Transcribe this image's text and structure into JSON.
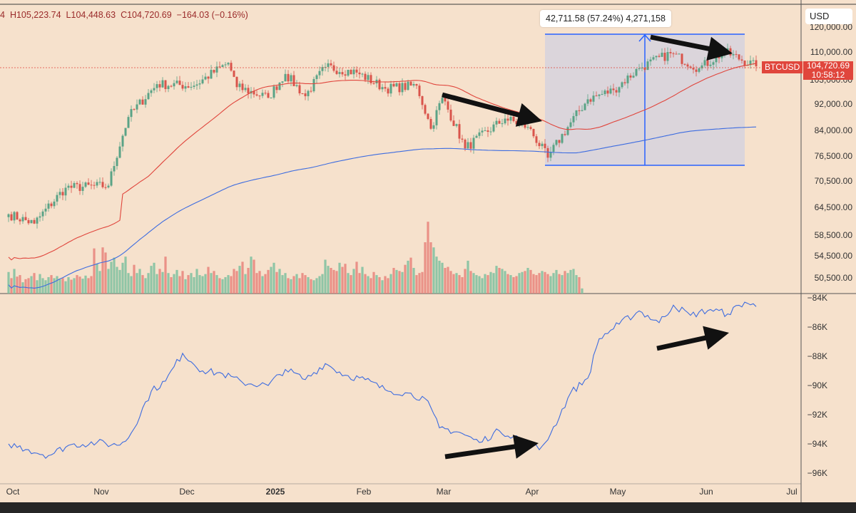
{
  "ohlc": {
    "prefix": "4",
    "high": "H105,223.74",
    "low": "L104,448.63",
    "close": "C104,720.69",
    "change": "−164.03 (−0.16%)"
  },
  "currency_button": "USD",
  "measure_label": "42,711.58 (57.24%) 4,271,158",
  "price_tag": {
    "symbol": "BTCUSD",
    "price": "104,720.69",
    "countdown": "10:58:12"
  },
  "colors": {
    "background": "#f6e1cc",
    "up": "#7dbf9f",
    "down": "#e8837a",
    "ma_fast": "#e0453c",
    "ma_slow": "#3d6ce0",
    "indicator": "#3d6ce0",
    "measure_fill": "#d2d0e0",
    "measure_line": "#2962ff"
  },
  "chart_data": [
    {
      "type": "candlestick",
      "series": [
        {
          "name": "BTCUSD"
        },
        {
          "name": "fast moving average"
        },
        {
          "name": "slow moving average"
        }
      ],
      "y_ticks": [
        "120,000.00",
        "110,000.00",
        "103,000.00",
        "92,000.00",
        "84,000.00",
        "76,500.00",
        "70,500.00",
        "64,500.00",
        "58,500.00",
        "54,500.00",
        "50,500.00"
      ],
      "x_ticks": [
        "Oct",
        "Nov",
        "Dec",
        "2025",
        "Feb",
        "Mar",
        "Apr",
        "May",
        "Jun",
        "Jul"
      ],
      "keypoints": [
        {
          "date": "Oct 1",
          "close": 63000
        },
        {
          "date": "Oct 10",
          "close": 61000
        },
        {
          "date": "Oct 21",
          "close": 69000
        },
        {
          "date": "Nov 5",
          "close": 69500
        },
        {
          "date": "Nov 12",
          "close": 88000
        },
        {
          "date": "Nov 22",
          "close": 98500
        },
        {
          "date": "Dec 5",
          "close": 98000
        },
        {
          "date": "Dec 17",
          "close": 106000
        },
        {
          "date": "Dec 20",
          "close": 97500
        },
        {
          "date": "Dec 31",
          "close": 94000
        },
        {
          "date": "Jan 6",
          "close": 102000
        },
        {
          "date": "Jan 13",
          "close": 94500
        },
        {
          "date": "Jan 20",
          "close": 104500
        },
        {
          "date": "Jan 31",
          "close": 102500
        },
        {
          "date": "Feb 10",
          "close": 97000
        },
        {
          "date": "Feb 21",
          "close": 98000
        },
        {
          "date": "Feb 26",
          "close": 84500
        },
        {
          "date": "Mar 2",
          "close": 94000
        },
        {
          "date": "Mar 10",
          "close": 79000
        },
        {
          "date": "Mar 24",
          "close": 87500
        },
        {
          "date": "Apr 1",
          "close": 85000
        },
        {
          "date": "Apr 8",
          "close": 76500
        },
        {
          "date": "Apr 22",
          "close": 93500
        },
        {
          "date": "May 1",
          "close": 96500
        },
        {
          "date": "May 10",
          "close": 104000
        },
        {
          "date": "May 21",
          "close": 109500
        },
        {
          "date": "May 31",
          "close": 104000
        },
        {
          "date": "Jun 9",
          "close": 110000
        },
        {
          "date": "Jun 20",
          "close": 104720
        }
      ],
      "volume": [
        42,
        30,
        48,
        33,
        36,
        22,
        28,
        30,
        34,
        40,
        26,
        38,
        30,
        26,
        32,
        36,
        30,
        34,
        28,
        30,
        24,
        32,
        27,
        30,
        36,
        33,
        29,
        35,
        30,
        34,
        88,
        58,
        44,
        90,
        80,
        48,
        62,
        70,
        52,
        46,
        60,
        72,
        40,
        34,
        56,
        40,
        48,
        36,
        30,
        40,
        54,
        60,
        38,
        48,
        42,
        72,
        40,
        32,
        38,
        46,
        34,
        44,
        28,
        36,
        40,
        32,
        48,
        36,
        34,
        38,
        52,
        40,
        44,
        36,
        30,
        28,
        32,
        36,
        34,
        48,
        44,
        54,
        62,
        38,
        50,
        72,
        66,
        40,
        44,
        34,
        38,
        46,
        52,
        60,
        42,
        48,
        36,
        40,
        30,
        28,
        34,
        38,
        30,
        40,
        36,
        32,
        28,
        26,
        30,
        34,
        38,
        66,
        54,
        50,
        46,
        44,
        60,
        52,
        58,
        40,
        36,
        48,
        62,
        40,
        52,
        38,
        34,
        30,
        42,
        36,
        32,
        26,
        34,
        30,
        38,
        50,
        46,
        44,
        42,
        56,
        64,
        70,
        50,
        36,
        40,
        42,
        100,
        140,
        100,
        90,
        72,
        64,
        60,
        50,
        52,
        44,
        38,
        40,
        36,
        32,
        48,
        64,
        44,
        40,
        36,
        34,
        30,
        38,
        36,
        42,
        40,
        54,
        50,
        48,
        44,
        38,
        36,
        32,
        34,
        40,
        42,
        44,
        50,
        46,
        38,
        36,
        40,
        44,
        42,
        38,
        34,
        40,
        46,
        38,
        36,
        44,
        40,
        46,
        48,
        36,
        32,
        10
      ],
      "measure": {
        "change": "42,711.58",
        "percent": "57.24%",
        "volume": "4,271,158"
      }
    },
    {
      "type": "line",
      "series": [
        {
          "name": ""
        }
      ],
      "y_ticks": [
        "−84K",
        "−86K",
        "−88K",
        "−90K",
        "−92K",
        "−94K",
        "−96K"
      ],
      "ylim": [
        -96500,
        -83500
      ],
      "x": [
        "Oct 1",
        "Oct 8",
        "Oct 15",
        "Oct 22",
        "Nov 1",
        "Nov 8",
        "Nov 12",
        "Nov 20",
        "Nov 25",
        "Dec 1",
        "Dec 8",
        "Dec 15",
        "Dec 22",
        "Dec 31",
        "Jan 6",
        "Jan 13",
        "Jan 20",
        "Jan 27",
        "Feb 3",
        "Feb 10",
        "Feb 17",
        "Feb 24",
        "Mar 1",
        "Mar 8",
        "Mar 15",
        "Mar 22",
        "Mar 29",
        "Apr 5",
        "Apr 9",
        "Apr 16",
        "Apr 22",
        "Apr 26",
        "May 3",
        "May 10",
        "May 17",
        "May 22",
        "May 28",
        "Jun 4",
        "Jun 10",
        "Jun 16",
        "Jun 20"
      ],
      "values": [
        -94000,
        -94400,
        -94800,
        -94100,
        -93900,
        -94100,
        -93600,
        -90400,
        -89700,
        -87800,
        -89000,
        -89200,
        -89800,
        -90000,
        -88900,
        -89600,
        -88500,
        -89300,
        -89600,
        -90300,
        -90500,
        -90900,
        -92900,
        -93200,
        -93900,
        -93100,
        -93600,
        -94400,
        -93300,
        -90500,
        -89500,
        -86800,
        -85800,
        -84900,
        -85700,
        -84500,
        -85200,
        -84800,
        -85100,
        -84300,
        -84600
      ]
    }
  ]
}
